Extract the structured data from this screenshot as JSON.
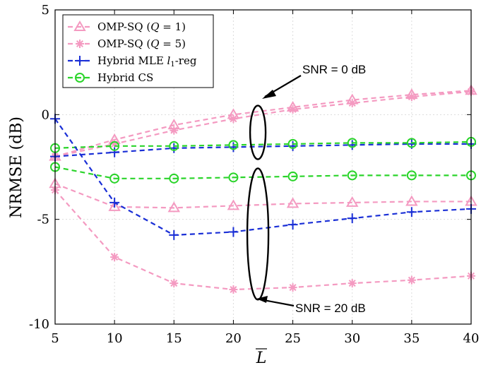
{
  "chart_data": {
    "type": "line",
    "title": "",
    "xlabel": "L",
    "ylabel": "NRMSE (dB)",
    "xlim": [
      5,
      40
    ],
    "ylim": [
      -10,
      5
    ],
    "x": [
      5,
      10,
      15,
      20,
      25,
      30,
      35,
      40
    ],
    "xticks": [
      "5",
      "10",
      "15",
      "20",
      "25",
      "30",
      "35",
      "40"
    ],
    "yticks": [
      "5",
      "0",
      "-5",
      "-10"
    ],
    "grid": true,
    "legend_position": "top-left",
    "series": [
      {
        "name": "OMP-SQ (Q = 1)",
        "legend_main": "OMP-SQ (",
        "legend_var": "Q",
        "legend_tail": " = 1)",
        "marker": "triangle",
        "color": "#f49ac1",
        "snr": "0 dB",
        "values": [
          -2.0,
          -1.2,
          -0.5,
          0.0,
          0.35,
          0.7,
          0.95,
          1.15
        ],
        "show_legend": true
      },
      {
        "name": "OMP-SQ (Q = 5)",
        "legend_main": "OMP-SQ (",
        "legend_var": "Q",
        "legend_tail": " = 5)",
        "marker": "asterisk",
        "color": "#f49ac1",
        "snr": "0 dB",
        "values": [
          -2.0,
          -1.4,
          -0.75,
          -0.2,
          0.25,
          0.55,
          0.85,
          1.1
        ],
        "show_legend": true
      },
      {
        "name": "Hybrid MLE l1-reg",
        "legend_main": "Hybrid MLE ",
        "legend_var": "l",
        "legend_tail": "-reg",
        "legend_sub": "1",
        "marker": "plus",
        "color": "#1a2fd6",
        "snr": "0 dB",
        "values": [
          -2.0,
          -1.8,
          -1.6,
          -1.55,
          -1.5,
          -1.45,
          -1.4,
          -1.4
        ],
        "show_legend": true
      },
      {
        "name": "Hybrid CS",
        "legend_main": "Hybrid CS",
        "legend_var": "",
        "legend_tail": "",
        "marker": "circle",
        "color": "#2ad42a",
        "snr": "0 dB",
        "values": [
          -1.6,
          -1.5,
          -1.5,
          -1.45,
          -1.4,
          -1.35,
          -1.35,
          -1.3
        ],
        "show_legend": true
      },
      {
        "name": "OMP-SQ (Q = 1)",
        "marker": "triangle",
        "color": "#f49ac1",
        "snr": "20 dB",
        "values": [
          -3.3,
          -4.4,
          -4.45,
          -4.35,
          -4.25,
          -4.2,
          -4.15,
          -4.15
        ],
        "show_legend": false
      },
      {
        "name": "OMP-SQ (Q = 5)",
        "marker": "asterisk",
        "color": "#f49ac1",
        "snr": "20 dB",
        "values": [
          -3.6,
          -6.8,
          -8.05,
          -8.35,
          -8.25,
          -8.05,
          -7.9,
          -7.7
        ],
        "show_legend": false
      },
      {
        "name": "Hybrid MLE l1-reg",
        "marker": "plus",
        "color": "#1a2fd6",
        "snr": "20 dB",
        "values": [
          -0.2,
          -4.2,
          -5.75,
          -5.6,
          -5.25,
          -4.95,
          -4.65,
          -4.5
        ],
        "show_legend": false
      },
      {
        "name": "Hybrid CS",
        "marker": "circle",
        "color": "#2ad42a",
        "snr": "20 dB",
        "values": [
          -2.5,
          -3.05,
          -3.05,
          -3.0,
          -2.95,
          -2.9,
          -2.9,
          -2.9
        ],
        "show_legend": false
      }
    ],
    "annotations": [
      {
        "text": "SNR = 0 dB",
        "ellipse_x": 22,
        "ellipse_y": -0.85
      },
      {
        "text": "SNR = 20 dB",
        "ellipse_x": 22,
        "ellipse_y": -5.7
      }
    ]
  }
}
